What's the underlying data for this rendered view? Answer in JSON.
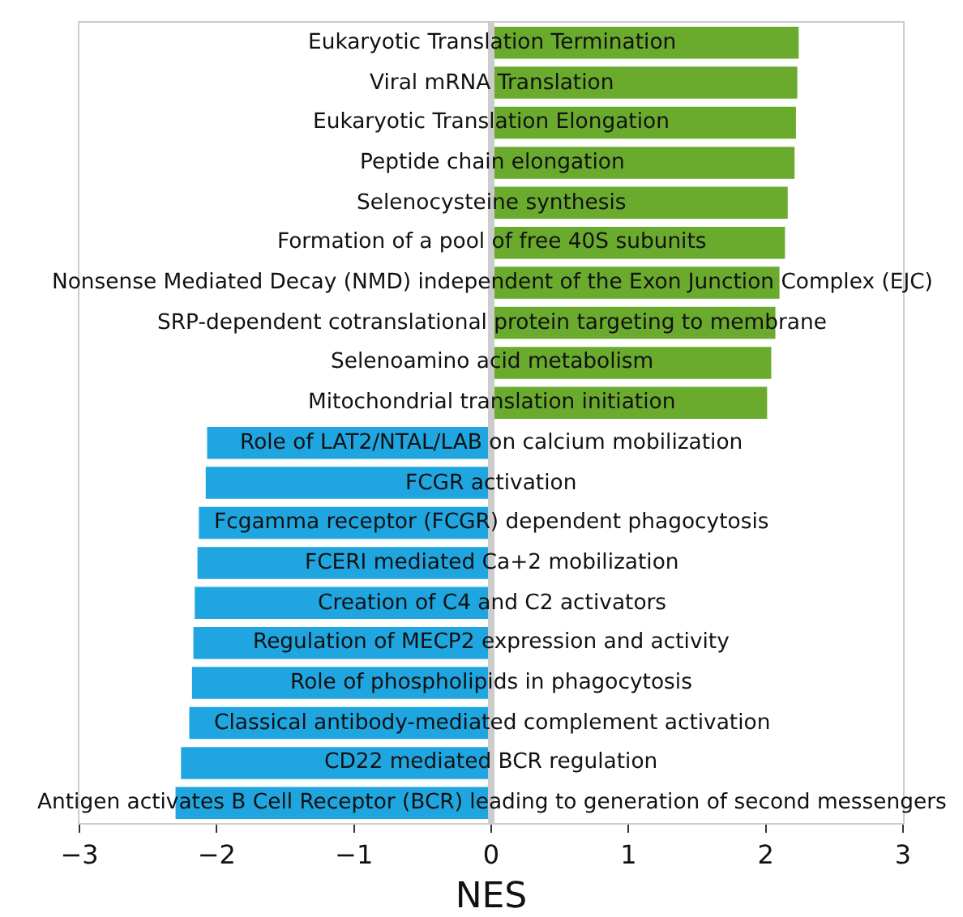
{
  "chart_data": {
    "type": "bar",
    "orientation": "horizontal",
    "xlabel": "NES",
    "categories": [
      "Eukaryotic Translation Termination",
      "Viral mRNA Translation",
      "Eukaryotic Translation Elongation",
      "Peptide chain elongation",
      "Selenocysteine synthesis",
      "Formation of a pool of free 40S subunits",
      "Nonsense Mediated Decay (NMD) independent of the Exon Junction Complex (EJC)",
      "SRP-dependent cotranslational protein targeting to membrane",
      "Selenoamino acid metabolism",
      "Mitochondrial translation initiation",
      "Role of LAT2/NTAL/LAB on calcium mobilization",
      "FCGR activation",
      "Fcgamma receptor (FCGR) dependent phagocytosis",
      "FCERI mediated Ca+2 mobilization",
      "Creation of C4 and C2 activators",
      "Regulation of MECP2 expression and activity",
      "Role of phospholipids in phagocytosis",
      "Classical antibody-mediated complement activation",
      "CD22 mediated BCR regulation",
      "Antigen activates B Cell Receptor (BCR) leading to generation of second messengers"
    ],
    "values": [
      2.24,
      2.23,
      2.22,
      2.21,
      2.16,
      2.14,
      2.1,
      2.07,
      2.04,
      2.01,
      -2.07,
      -2.08,
      -2.13,
      -2.14,
      -2.16,
      -2.17,
      -2.18,
      -2.2,
      -2.26,
      -2.3
    ],
    "colors": [
      "#6aab2e",
      "#6aab2e",
      "#6aab2e",
      "#6aab2e",
      "#6aab2e",
      "#6aab2e",
      "#6aab2e",
      "#6aab2e",
      "#6aab2e",
      "#6aab2e",
      "#1fa6e0",
      "#1fa6e0",
      "#1fa6e0",
      "#1fa6e0",
      "#1fa6e0",
      "#1fa6e0",
      "#1fa6e0",
      "#1fa6e0",
      "#1fa6e0",
      "#1fa6e0"
    ],
    "xlim": [
      -3,
      3
    ],
    "xticks": [
      {
        "value": -3,
        "label": "−3"
      },
      {
        "value": -2,
        "label": "−2"
      },
      {
        "value": -1,
        "label": "−1"
      },
      0,
      1,
      2,
      3
    ],
    "ref_lines": [
      {
        "axis": "x",
        "value": 0,
        "color": "#cccccc"
      }
    ],
    "grid": false,
    "tick_labels": "x"
  }
}
